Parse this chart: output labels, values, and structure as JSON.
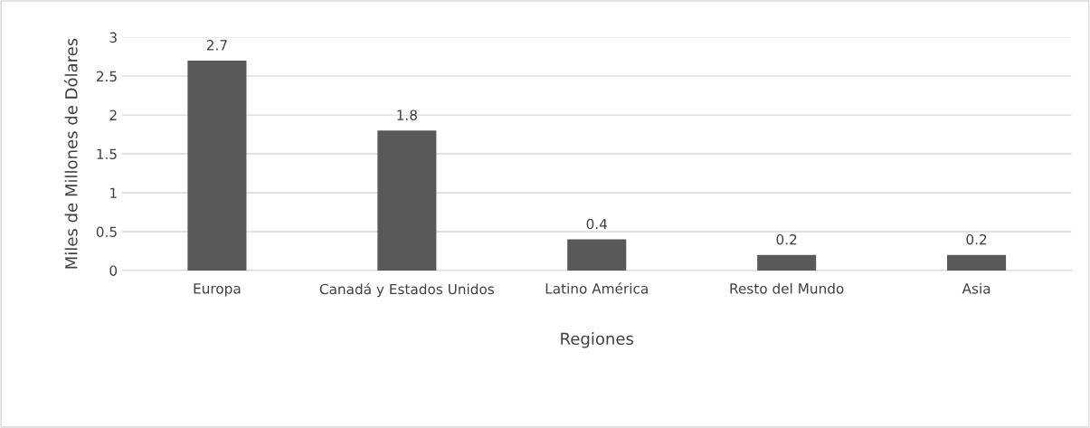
{
  "chart_data": {
    "type": "bar",
    "xlabel": "Regiones",
    "ylabel": "Miles de Millones de Dólares",
    "categories": [
      "Europa",
      "Canadá y Estados Unidos",
      "Latino América",
      "Resto del Mundo",
      "Asia"
    ],
    "values": [
      2.7,
      1.8,
      0.4,
      0.2,
      0.2
    ],
    "color": "#595959",
    "ylim": [
      0,
      3
    ],
    "yticks": [
      0,
      {
        "value": 0.5,
        "label": "0.5"
      },
      1,
      {
        "value": 1.5,
        "label": "1.5"
      },
      2,
      {
        "value": 2.5,
        "label": "2.5"
      },
      3
    ],
    "grid": "y",
    "data_labels": true,
    "legend": false
  }
}
